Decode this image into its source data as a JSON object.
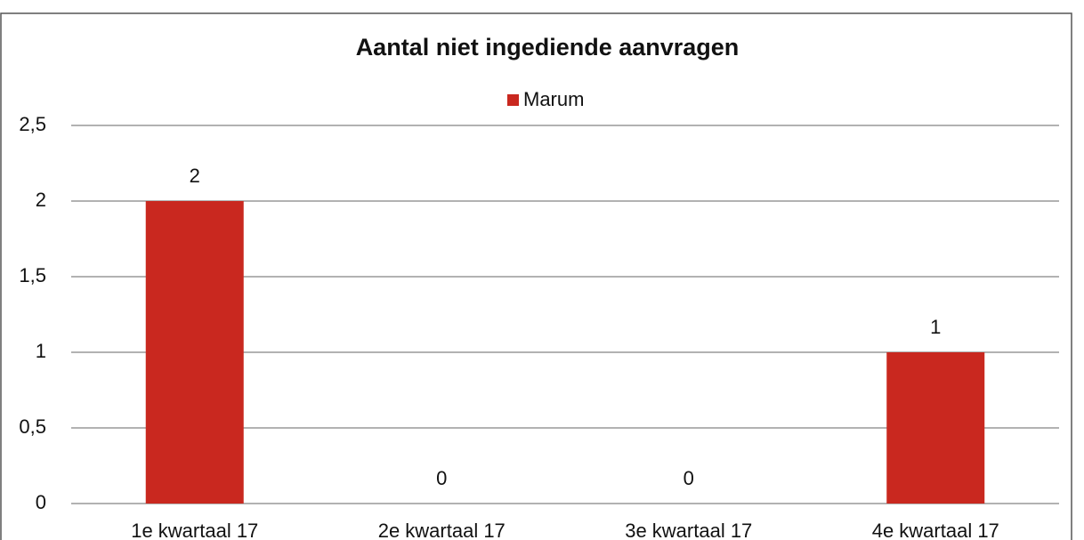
{
  "chart_data": {
    "type": "bar",
    "title": "Aantal niet ingediende aanvragen",
    "categories": [
      "1e kwartaal 17",
      "2e kwartaal 17",
      "3e kwartaal 17",
      "4e kwartaal 17"
    ],
    "series": [
      {
        "name": "Marum",
        "color": "#c9281f",
        "values": [
          2,
          0,
          0,
          1
        ]
      }
    ],
    "ylim": [
      0,
      2.5
    ],
    "yticks": [
      0,
      {
        "value": 0.5,
        "label": "0,5"
      },
      1,
      {
        "value": 1.5,
        "label": "1,5"
      },
      2,
      {
        "value": 2.5,
        "label": "2,5"
      }
    ],
    "grid": true,
    "legend": "top"
  }
}
